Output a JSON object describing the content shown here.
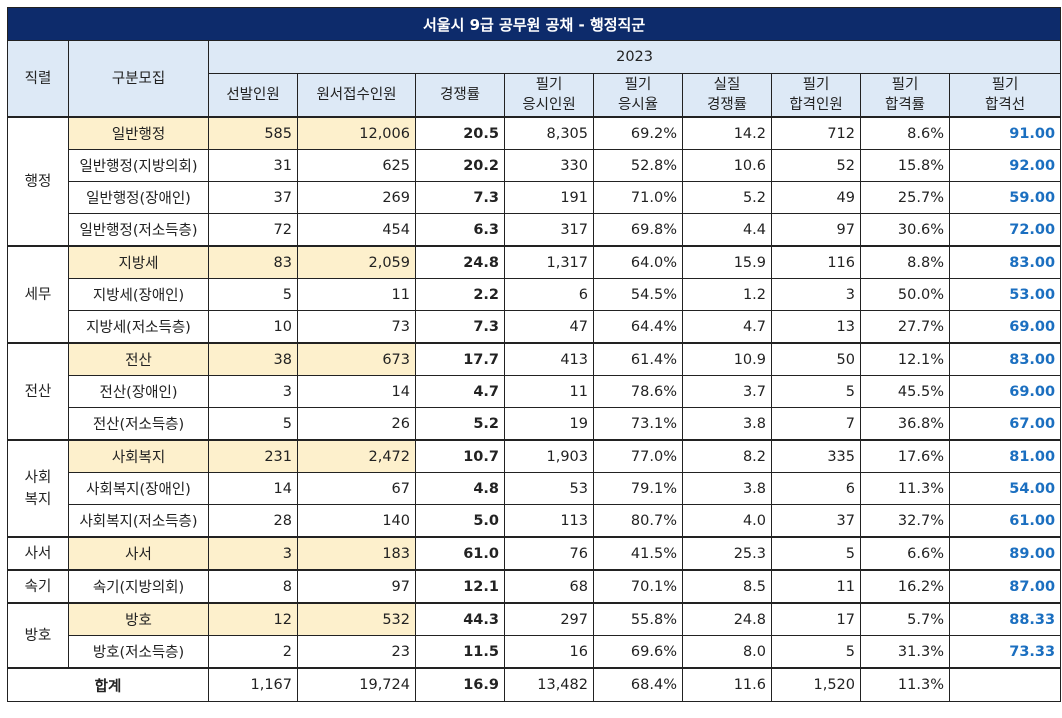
{
  "title": "서울시 9급 공무원 공채 - 행정직군",
  "year": "2023",
  "headers": {
    "category": "직렬",
    "subcategory": "구분모집",
    "cols": [
      "선발인원",
      "원서접수인원",
      "경쟁률",
      "필기\n응시인원",
      "필기\n응시율",
      "실질\n경쟁률",
      "필기\n합격인원",
      "필기\n합격률",
      "필기\n합격선"
    ]
  },
  "groups": [
    {
      "category": "행정",
      "rows": [
        {
          "name": "일반행정",
          "highlight": true,
          "vals": [
            "585",
            "12,006",
            "20.5",
            "8,305",
            "69.2%",
            "14.2",
            "712",
            "8.6%",
            "91.00"
          ]
        },
        {
          "name": "일반행정(지방의회)",
          "highlight": false,
          "vals": [
            "31",
            "625",
            "20.2",
            "330",
            "52.8%",
            "10.6",
            "52",
            "15.8%",
            "92.00"
          ]
        },
        {
          "name": "일반행정(장애인)",
          "highlight": false,
          "vals": [
            "37",
            "269",
            "7.3",
            "191",
            "71.0%",
            "5.2",
            "49",
            "25.7%",
            "59.00"
          ]
        },
        {
          "name": "일반행정(저소득층)",
          "highlight": false,
          "vals": [
            "72",
            "454",
            "6.3",
            "317",
            "69.8%",
            "4.4",
            "97",
            "30.6%",
            "72.00"
          ]
        }
      ]
    },
    {
      "category": "세무",
      "rows": [
        {
          "name": "지방세",
          "highlight": true,
          "vals": [
            "83",
            "2,059",
            "24.8",
            "1,317",
            "64.0%",
            "15.9",
            "116",
            "8.8%",
            "83.00"
          ]
        },
        {
          "name": "지방세(장애인)",
          "highlight": false,
          "vals": [
            "5",
            "11",
            "2.2",
            "6",
            "54.5%",
            "1.2",
            "3",
            "50.0%",
            "53.00"
          ]
        },
        {
          "name": "지방세(저소득층)",
          "highlight": false,
          "vals": [
            "10",
            "73",
            "7.3",
            "47",
            "64.4%",
            "4.7",
            "13",
            "27.7%",
            "69.00"
          ]
        }
      ]
    },
    {
      "category": "전산",
      "rows": [
        {
          "name": "전산",
          "highlight": true,
          "vals": [
            "38",
            "673",
            "17.7",
            "413",
            "61.4%",
            "10.9",
            "50",
            "12.1%",
            "83.00"
          ]
        },
        {
          "name": "전산(장애인)",
          "highlight": false,
          "vals": [
            "3",
            "14",
            "4.7",
            "11",
            "78.6%",
            "3.7",
            "5",
            "45.5%",
            "69.00"
          ]
        },
        {
          "name": "전산(저소득층)",
          "highlight": false,
          "vals": [
            "5",
            "26",
            "5.2",
            "19",
            "73.1%",
            "3.8",
            "7",
            "36.8%",
            "67.00"
          ]
        }
      ]
    },
    {
      "category": "사회\n복지",
      "rows": [
        {
          "name": "사회복지",
          "highlight": true,
          "vals": [
            "231",
            "2,472",
            "10.7",
            "1,903",
            "77.0%",
            "8.2",
            "335",
            "17.6%",
            "81.00"
          ]
        },
        {
          "name": "사회복지(장애인)",
          "highlight": false,
          "vals": [
            "14",
            "67",
            "4.8",
            "53",
            "79.1%",
            "3.8",
            "6",
            "11.3%",
            "54.00"
          ]
        },
        {
          "name": "사회복지(저소득층)",
          "highlight": false,
          "vals": [
            "28",
            "140",
            "5.0",
            "113",
            "80.7%",
            "4.0",
            "37",
            "32.7%",
            "61.00"
          ]
        }
      ]
    },
    {
      "category": "사서",
      "rows": [
        {
          "name": "사서",
          "highlight": true,
          "vals": [
            "3",
            "183",
            "61.0",
            "76",
            "41.5%",
            "25.3",
            "5",
            "6.6%",
            "89.00"
          ]
        }
      ]
    },
    {
      "category": "속기",
      "rows": [
        {
          "name": "속기(지방의회)",
          "highlight": false,
          "vals": [
            "8",
            "97",
            "12.1",
            "68",
            "70.1%",
            "8.5",
            "11",
            "16.2%",
            "87.00"
          ]
        }
      ]
    },
    {
      "category": "방호",
      "rows": [
        {
          "name": "방호",
          "highlight": true,
          "vals": [
            "12",
            "532",
            "44.3",
            "297",
            "55.8%",
            "24.8",
            "17",
            "5.7%",
            "88.33"
          ]
        },
        {
          "name": "방호(저소득층)",
          "highlight": false,
          "vals": [
            "2",
            "23",
            "11.5",
            "16",
            "69.6%",
            "8.0",
            "5",
            "31.3%",
            "73.33"
          ]
        }
      ]
    }
  ],
  "total": {
    "label": "합계",
    "vals": [
      "1,167",
      "19,724",
      "16.9",
      "13,482",
      "68.4%",
      "11.6",
      "1,520",
      "11.3%",
      ""
    ]
  },
  "colors": {
    "title_bg": "#0d2b6b",
    "header_bg": "#dde9f6",
    "highlight_bg": "#fdf0cc",
    "cutline_text": "#1b6fc0"
  }
}
